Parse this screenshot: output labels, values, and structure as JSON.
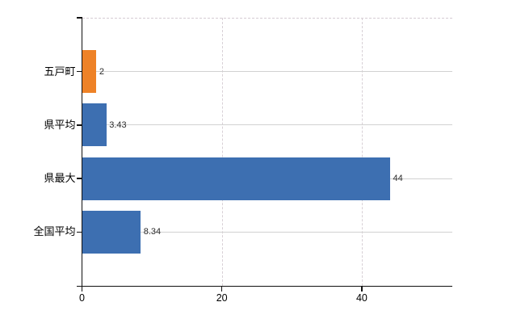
{
  "chart_data": {
    "type": "bar",
    "orientation": "horizontal",
    "title": "",
    "categories": [
      "五戸町",
      "県平均",
      "県最大",
      "全国平均"
    ],
    "values": [
      2,
      3.43,
      44,
      8.34
    ],
    "value_labels": [
      "2",
      "3.43",
      "44",
      "8.34"
    ],
    "bar_colors": [
      "#ee8227",
      "#3d6fb1",
      "#3d6fb1",
      "#3d6fb1"
    ],
    "x_ticks": [
      0,
      20,
      40
    ],
    "x_tick_labels": [
      "0",
      "20",
      "40"
    ],
    "xlim": [
      0,
      52.9
    ],
    "ylabel": "",
    "xlabel": "",
    "legend": "none",
    "grid": {
      "horizontal_category_lines": true,
      "vertical_tick_lines": true,
      "top_border_dashed": true
    },
    "colors": {
      "bar_blue": "#3d6fb1",
      "bar_orange": "#ee8227",
      "gridline": "#d2d2d2",
      "dashed_line": "#d5cbd3",
      "axis": "#111111",
      "background": "#ffffff"
    }
  }
}
